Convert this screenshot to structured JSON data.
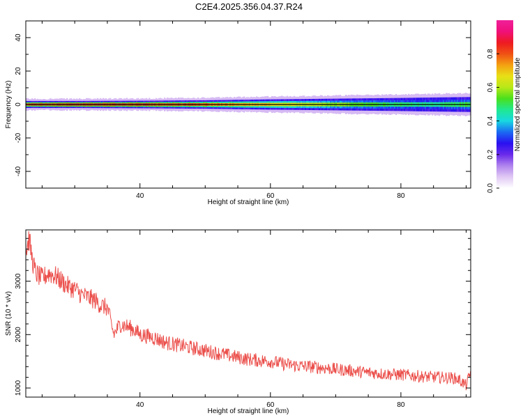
{
  "figure": {
    "title": "C2E4.2025.356.04.37.R24"
  },
  "colors": {
    "frame": "#000000",
    "snr_line": "#e8302b",
    "zero_line": "#000000",
    "colormap": [
      "#ffffff",
      "#e0c8f4",
      "#b084ee",
      "#6a2bea",
      "#2a10f0",
      "#1a6af2",
      "#18d8e0",
      "#20e890",
      "#4ae01c",
      "#b8e818",
      "#e8e016",
      "#f4a012",
      "#f05014",
      "#ee1a22",
      "#f0107a",
      "#f0209a"
    ]
  },
  "chart_data": [
    {
      "type": "heatmap",
      "id": "spectrogram",
      "title": "",
      "xlabel": "Height of straight line (km)",
      "ylabel": "Frequency (Hz)",
      "xlim": [
        22.5,
        90.7
      ],
      "ylim": [
        -50,
        50
      ],
      "xticks": [
        40,
        60,
        80
      ],
      "xtick_labels": [
        "40",
        "60",
        "80"
      ],
      "yticks": [
        -40,
        -20,
        0,
        20,
        40
      ],
      "ytick_labels": [
        "-40",
        "-20",
        "0",
        "20",
        "40"
      ],
      "zero_line": 0,
      "band": {
        "x": [
          23,
          30,
          40,
          50,
          55,
          60,
          70,
          80,
          85,
          90.7
        ],
        "core_amplitude": [
          0.85,
          0.9,
          0.88,
          0.82,
          0.75,
          0.72,
          0.6,
          0.5,
          0.48,
          0.55
        ],
        "halfwidth_hz": [
          1.5,
          1.5,
          1.6,
          1.8,
          2.0,
          2.2,
          2.5,
          2.8,
          3.0,
          3.2
        ]
      },
      "colorbar": {
        "label": "Normalized spectral amplitude",
        "range": [
          0,
          1
        ],
        "ticks": [
          0.0,
          0.2,
          0.4,
          0.6,
          0.8
        ],
        "tick_labels": [
          "0.0",
          "0.2",
          "0.4",
          "0.6",
          "0.8"
        ]
      }
    },
    {
      "type": "line",
      "id": "snr",
      "title": "",
      "xlabel": "Height of straight line (km)",
      "ylabel": "SNR (10 * v/v)",
      "xlim": [
        22.5,
        90.7
      ],
      "ylim": [
        830,
        3960
      ],
      "xticks": [
        40,
        60,
        80
      ],
      "xtick_labels": [
        "40",
        "60",
        "80"
      ],
      "yticks": [
        1000,
        2000,
        3000
      ],
      "ytick_labels": [
        "1000",
        "2000",
        "3000"
      ],
      "series": [
        {
          "name": "SNR",
          "x": [
            22.5,
            23,
            23.5,
            24,
            25,
            26,
            27,
            28,
            29,
            30,
            31,
            32,
            33,
            34,
            35,
            36,
            37,
            38,
            39,
            40,
            42,
            44,
            46,
            48,
            50,
            52,
            54,
            56,
            58,
            60,
            62,
            64,
            66,
            68,
            70,
            72,
            74,
            76,
            78,
            80,
            82,
            84,
            86,
            88,
            89,
            90,
            90.7
          ],
          "y": [
            3550,
            3800,
            3400,
            3150,
            3050,
            3150,
            3100,
            3000,
            2900,
            2850,
            2750,
            2700,
            2650,
            2550,
            2500,
            2000,
            2200,
            2150,
            2100,
            2000,
            1950,
            1850,
            1800,
            1750,
            1700,
            1650,
            1600,
            1550,
            1520,
            1500,
            1450,
            1420,
            1400,
            1380,
            1350,
            1330,
            1300,
            1280,
            1260,
            1250,
            1230,
            1210,
            1200,
            1190,
            1150,
            1050,
            1300
          ]
        }
      ]
    }
  ]
}
